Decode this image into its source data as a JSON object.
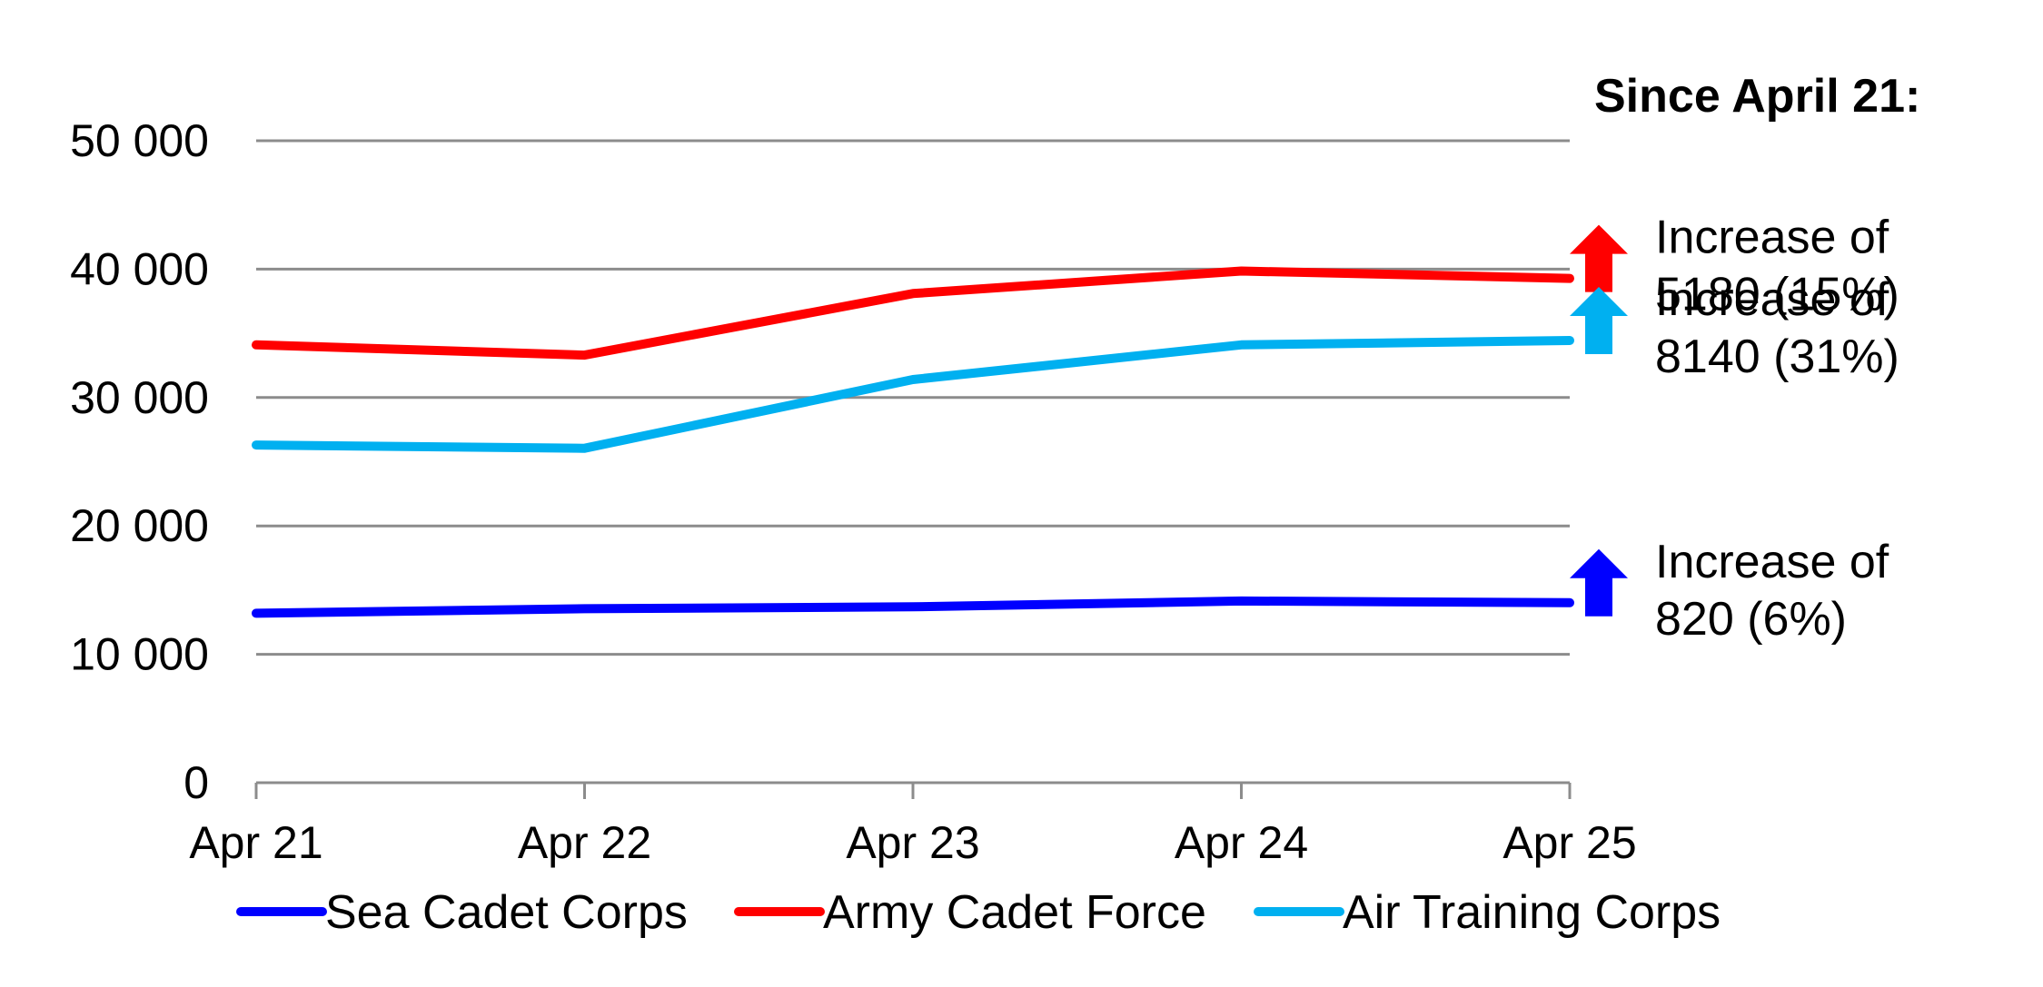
{
  "chart_data": {
    "type": "line",
    "categories": [
      "Apr 21",
      "Apr 22",
      "Apr 23",
      "Apr 24",
      "Apr 25"
    ],
    "ylim": [
      0,
      50000
    ],
    "yticks": [
      0,
      10000,
      20000,
      30000,
      40000,
      50000
    ],
    "ytick_labels": [
      "0",
      "10 000",
      "20 000",
      "30 000",
      "40 000",
      "50 000"
    ],
    "grid": true,
    "legend_position": "bottom",
    "series": [
      {
        "name": "Sea Cadet Corps",
        "color": "#0000FF",
        "values": [
          13200,
          13550,
          13700,
          14150,
          14020
        ]
      },
      {
        "name": "Army Cadet Force",
        "color": "#FF0000",
        "values": [
          34100,
          33300,
          38100,
          39850,
          39280
        ]
      },
      {
        "name": "Air Training Corps",
        "color": "#00B0F0",
        "values": [
          26300,
          26050,
          31400,
          34100,
          34440
        ]
      }
    ],
    "annotations": {
      "title": "Since April 21:",
      "items": [
        {
          "series": "Army Cadet Force",
          "color": "#FF0000",
          "icon": "up-arrow-icon",
          "line1": "Increase of",
          "line2": "5180 (15%)"
        },
        {
          "series": "Air Training Corps",
          "color": "#00B0F0",
          "icon": "up-arrow-icon",
          "line1": "Increase of",
          "line2": "8140 (31%)"
        },
        {
          "series": "Sea Cadet Corps",
          "color": "#0000FF",
          "icon": "up-arrow-icon",
          "line1": "Increase of",
          "line2": "820 (6%)"
        }
      ]
    }
  }
}
